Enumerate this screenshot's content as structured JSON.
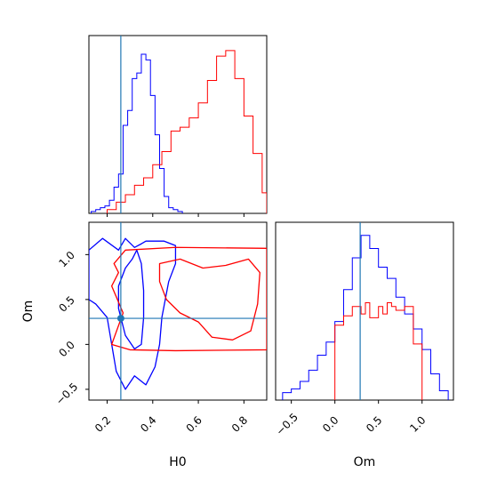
{
  "figure": {
    "type": "corner-plot"
  },
  "colors": {
    "series_a": "#0000ff",
    "series_b": "#ff0000",
    "truth": "#1f77b4"
  },
  "labels": {
    "x_h0": "H0",
    "x_om": "Om",
    "y_om": "Om"
  },
  "chart_data": [
    {
      "panel": "H0-marginal",
      "type": "histogram",
      "xlim": [
        0.12,
        0.9
      ],
      "truth": 0.26,
      "series": [
        {
          "color": "#0000ff",
          "edges": [
            0.13,
            0.15,
            0.17,
            0.19,
            0.21,
            0.23,
            0.25,
            0.27,
            0.29,
            0.31,
            0.33,
            0.35,
            0.37,
            0.39,
            0.41,
            0.43,
            0.45,
            0.47,
            0.49,
            0.51,
            0.53
          ],
          "heights": [
            0.01,
            0.02,
            0.03,
            0.04,
            0.07,
            0.14,
            0.21,
            0.47,
            0.55,
            0.72,
            0.75,
            0.85,
            0.82,
            0.63,
            0.42,
            0.24,
            0.09,
            0.03,
            0.02,
            0.01
          ]
        },
        {
          "color": "#ff0000",
          "edges": [
            0.2,
            0.24,
            0.28,
            0.32,
            0.36,
            0.4,
            0.44,
            0.48,
            0.52,
            0.56,
            0.6,
            0.64,
            0.68,
            0.72,
            0.76,
            0.8,
            0.84,
            0.88,
            0.9
          ],
          "heights": [
            0.02,
            0.06,
            0.1,
            0.15,
            0.19,
            0.26,
            0.33,
            0.44,
            0.46,
            0.51,
            0.59,
            0.71,
            0.84,
            0.87,
            0.72,
            0.52,
            0.32,
            0.11
          ]
        }
      ]
    },
    {
      "panel": "Om-vs-H0",
      "type": "contour",
      "xlim": [
        0.12,
        0.9
      ],
      "ylim": [
        -0.62,
        1.36
      ],
      "xticks": [
        0.2,
        0.4,
        0.6,
        0.8
      ],
      "xtick_labels": [
        "0.2",
        "0.4",
        "0.6",
        "0.8"
      ],
      "yticks": [
        -0.5,
        0.0,
        0.5,
        1.0
      ],
      "ytick_labels": [
        "−0.5",
        "0.0",
        "0.5",
        "1.0"
      ],
      "truth": {
        "x": 0.26,
        "y": 0.29
      },
      "contours": [
        {
          "color": "#0000ff",
          "level": "outer",
          "points": [
            [
              0.12,
              1.05
            ],
            [
              0.18,
              1.18
            ],
            [
              0.25,
              1.05
            ],
            [
              0.28,
              1.18
            ],
            [
              0.32,
              1.08
            ],
            [
              0.35,
              1.12
            ],
            [
              0.37,
              1.15
            ],
            [
              0.45,
              1.15
            ],
            [
              0.5,
              1.1
            ],
            [
              0.5,
              0.9
            ],
            [
              0.47,
              0.7
            ],
            [
              0.44,
              0.3
            ],
            [
              0.43,
              0.0
            ],
            [
              0.41,
              -0.25
            ],
            [
              0.37,
              -0.45
            ],
            [
              0.32,
              -0.35
            ],
            [
              0.28,
              -0.5
            ],
            [
              0.24,
              -0.3
            ],
            [
              0.22,
              0.0
            ],
            [
              0.2,
              0.3
            ],
            [
              0.15,
              0.45
            ],
            [
              0.12,
              0.5
            ]
          ]
        },
        {
          "color": "#0000ff",
          "level": "inner",
          "points": [
            [
              0.31,
              0.95
            ],
            [
              0.33,
              1.05
            ],
            [
              0.35,
              0.9
            ],
            [
              0.36,
              0.6
            ],
            [
              0.36,
              0.3
            ],
            [
              0.35,
              0.0
            ],
            [
              0.32,
              -0.05
            ],
            [
              0.28,
              0.1
            ],
            [
              0.25,
              0.4
            ],
            [
              0.25,
              0.65
            ],
            [
              0.28,
              0.85
            ]
          ]
        },
        {
          "color": "#ff0000",
          "level": "outer",
          "points": [
            [
              0.23,
              0.9
            ],
            [
              0.28,
              1.05
            ],
            [
              0.5,
              1.08
            ],
            [
              0.9,
              1.07
            ],
            [
              0.9,
              -0.06
            ],
            [
              0.5,
              -0.07
            ],
            [
              0.3,
              -0.06
            ],
            [
              0.22,
              0.0
            ],
            [
              0.27,
              0.35
            ],
            [
              0.22,
              0.65
            ],
            [
              0.25,
              0.8
            ]
          ]
        },
        {
          "color": "#ff0000",
          "level": "inner",
          "points": [
            [
              0.43,
              0.9
            ],
            [
              0.52,
              0.95
            ],
            [
              0.62,
              0.85
            ],
            [
              0.72,
              0.88
            ],
            [
              0.82,
              0.95
            ],
            [
              0.87,
              0.8
            ],
            [
              0.86,
              0.45
            ],
            [
              0.83,
              0.15
            ],
            [
              0.75,
              0.05
            ],
            [
              0.66,
              0.08
            ],
            [
              0.6,
              0.25
            ],
            [
              0.52,
              0.35
            ],
            [
              0.46,
              0.5
            ],
            [
              0.43,
              0.7
            ]
          ]
        }
      ]
    },
    {
      "panel": "Om-marginal",
      "type": "histogram",
      "xlim": [
        -0.68,
        1.36
      ],
      "xticks": [
        -0.5,
        0.0,
        0.5,
        1.0
      ],
      "xtick_labels": [
        "−0.5",
        "0.0",
        "0.5",
        "1.0"
      ],
      "truth": 0.29,
      "series": [
        {
          "color": "#0000ff",
          "edges": [
            -0.6,
            -0.5,
            -0.4,
            -0.3,
            -0.2,
            -0.1,
            0.0,
            0.1,
            0.2,
            0.3,
            0.4,
            0.5,
            0.6,
            0.7,
            0.8,
            0.9,
            1.0,
            1.1,
            1.2,
            1.3
          ],
          "heights": [
            0.04,
            0.06,
            0.1,
            0.16,
            0.24,
            0.31,
            0.42,
            0.59,
            0.76,
            0.88,
            0.81,
            0.71,
            0.65,
            0.55,
            0.46,
            0.38,
            0.27,
            0.14,
            0.05
          ]
        },
        {
          "color": "#ff0000",
          "edges": [
            0.0,
            0.1,
            0.2,
            0.3,
            0.35,
            0.4,
            0.5,
            0.55,
            0.6,
            0.65,
            0.7,
            0.8,
            0.9,
            1.0
          ],
          "heights": [
            0.4,
            0.45,
            0.5,
            0.46,
            0.52,
            0.44,
            0.5,
            0.46,
            0.52,
            0.5,
            0.48,
            0.5,
            0.3
          ]
        }
      ]
    }
  ]
}
